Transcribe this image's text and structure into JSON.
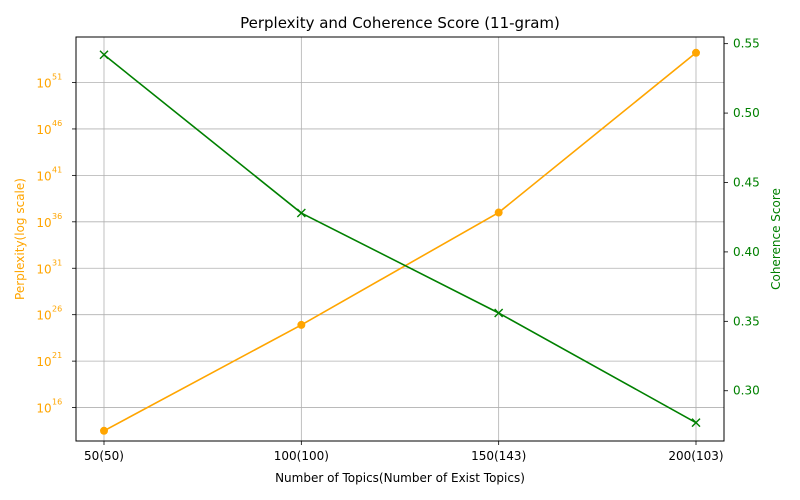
{
  "chart_data": {
    "type": "line",
    "title": "Perplexity and Coherence Score (11-gram)",
    "xlabel": "Number of Topics(Number of Exist Topics)",
    "categories": [
      "50(50)",
      "100(100)",
      "150(143)",
      "200(103)"
    ],
    "grid": true,
    "y_left": {
      "label": "Perplexity(log scale)",
      "scale": "log",
      "color": "#ffa500",
      "tick_exponents": [
        16,
        21,
        26,
        31,
        36,
        41,
        46,
        51
      ],
      "range_exponents": [
        12.4,
        55.9
      ]
    },
    "y_right": {
      "label": "Coherence Score",
      "scale": "linear",
      "color": "#008000",
      "ticks": [
        0.3,
        0.35,
        0.4,
        0.45,
        0.5,
        0.55
      ],
      "tick_labels": [
        "0.30",
        "0.35",
        "0.40",
        "0.45",
        "0.50",
        "0.55"
      ],
      "range": [
        0.2638,
        0.5548
      ]
    },
    "series": [
      {
        "axis": "left",
        "marker": "circle",
        "color": "#ffa500",
        "log10_values": [
          13.5,
          24.9,
          37.0,
          54.2
        ]
      },
      {
        "axis": "right",
        "marker": "x",
        "color": "#008000",
        "values": [
          0.542,
          0.428,
          0.356,
          0.277
        ]
      }
    ]
  }
}
